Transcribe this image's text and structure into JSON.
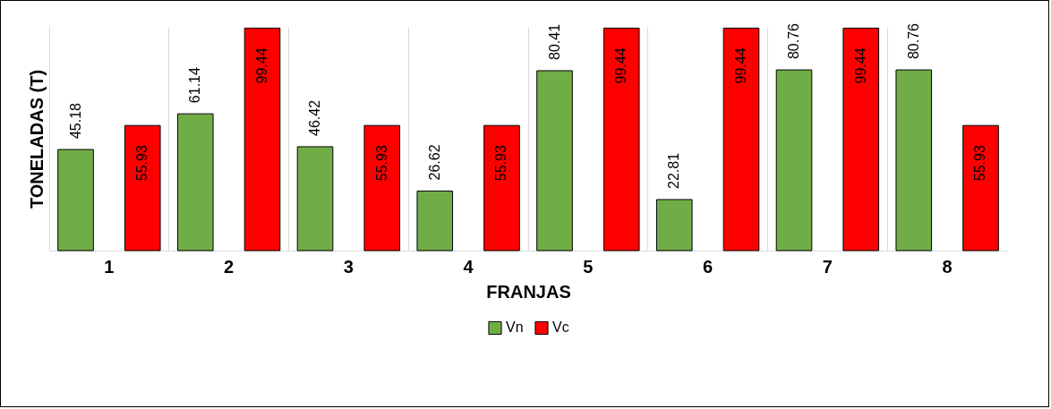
{
  "chart_data": {
    "type": "bar",
    "xlabel": "FRANJAS",
    "ylabel": "TONELADAS (T)",
    "categories": [
      "1",
      "2",
      "3",
      "4",
      "5",
      "6",
      "7",
      "8"
    ],
    "series": [
      {
        "name": "Vn",
        "color": "#70ad47",
        "values": [
          45.18,
          61.14,
          46.42,
          26.62,
          80.41,
          22.81,
          80.76,
          80.76
        ]
      },
      {
        "name": "Vc",
        "color": "#ff0000",
        "values": [
          55.93,
          99.44,
          55.93,
          55.93,
          99.44,
          99.44,
          99.44,
          55.93
        ]
      }
    ],
    "data_labels": true,
    "grid": "x",
    "legend": "bottom",
    "tick_labels": "x"
  }
}
